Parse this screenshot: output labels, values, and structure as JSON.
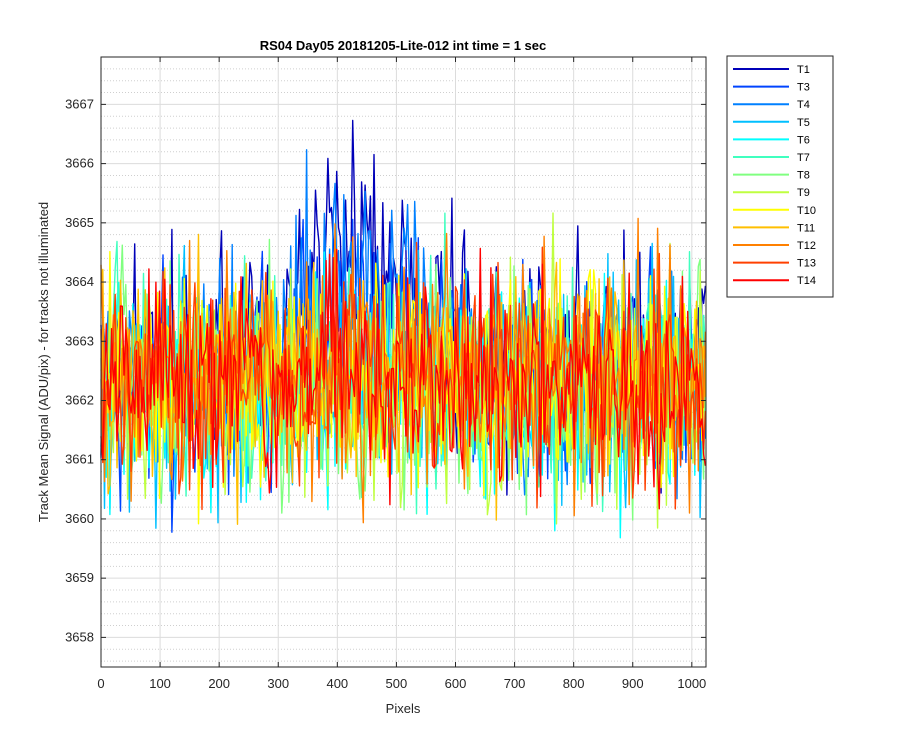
{
  "chart_data": {
    "type": "line",
    "title": "RS04 Day05 20181205-Lite-012 int time = 1 sec",
    "xlabel": "Pixels",
    "ylabel": "Track Mean Signal (ADU/pix) - for tracks not illuminated",
    "xlim": [
      0,
      1024
    ],
    "ylim": [
      3657.5,
      3667.8
    ],
    "xticks": [
      "0",
      "100",
      "200",
      "300",
      "400",
      "500",
      "600",
      "700",
      "800",
      "900",
      "1000"
    ],
    "yticks": [
      "3658",
      "3659",
      "3660",
      "3661",
      "3662",
      "3663",
      "3664",
      "3665",
      "3666",
      "3667"
    ],
    "grid": true,
    "minor_grid": true,
    "legend_position": "outside-top-right",
    "series": [
      {
        "name": "T1",
        "color": "#0000b8",
        "baseline": 3662.6,
        "bump": 2.2,
        "spread": 0.9
      },
      {
        "name": "T3",
        "color": "#0044ff",
        "baseline": 3662.3,
        "bump": 1.0,
        "spread": 0.9
      },
      {
        "name": "T4",
        "color": "#0080ff",
        "baseline": 3662.3,
        "bump": 1.6,
        "spread": 0.9
      },
      {
        "name": "T5",
        "color": "#00bfff",
        "baseline": 3662.2,
        "bump": 0.2,
        "spread": 0.9
      },
      {
        "name": "T6",
        "color": "#00ffff",
        "baseline": 3662.2,
        "bump": 0.0,
        "spread": 0.9
      },
      {
        "name": "T7",
        "color": "#40ffbf",
        "baseline": 3662.3,
        "bump": 0.0,
        "spread": 0.9
      },
      {
        "name": "T8",
        "color": "#80ff80",
        "baseline": 3662.3,
        "bump": 0.0,
        "spread": 0.9
      },
      {
        "name": "T9",
        "color": "#bfff40",
        "baseline": 3662.3,
        "bump": 0.0,
        "spread": 0.9
      },
      {
        "name": "T10",
        "color": "#ffff00",
        "baseline": 3662.3,
        "bump": 0.0,
        "spread": 0.9
      },
      {
        "name": "T11",
        "color": "#ffbf00",
        "baseline": 3662.4,
        "bump": 0.0,
        "spread": 0.9
      },
      {
        "name": "T12",
        "color": "#ff8000",
        "baseline": 3662.4,
        "bump": 0.0,
        "spread": 0.9
      },
      {
        "name": "T13",
        "color": "#ff4000",
        "baseline": 3662.3,
        "bump": 0.0,
        "spread": 0.9
      },
      {
        "name": "T14",
        "color": "#ff0000",
        "baseline": 3662.3,
        "bump": 0.0,
        "spread": 0.8
      }
    ]
  }
}
